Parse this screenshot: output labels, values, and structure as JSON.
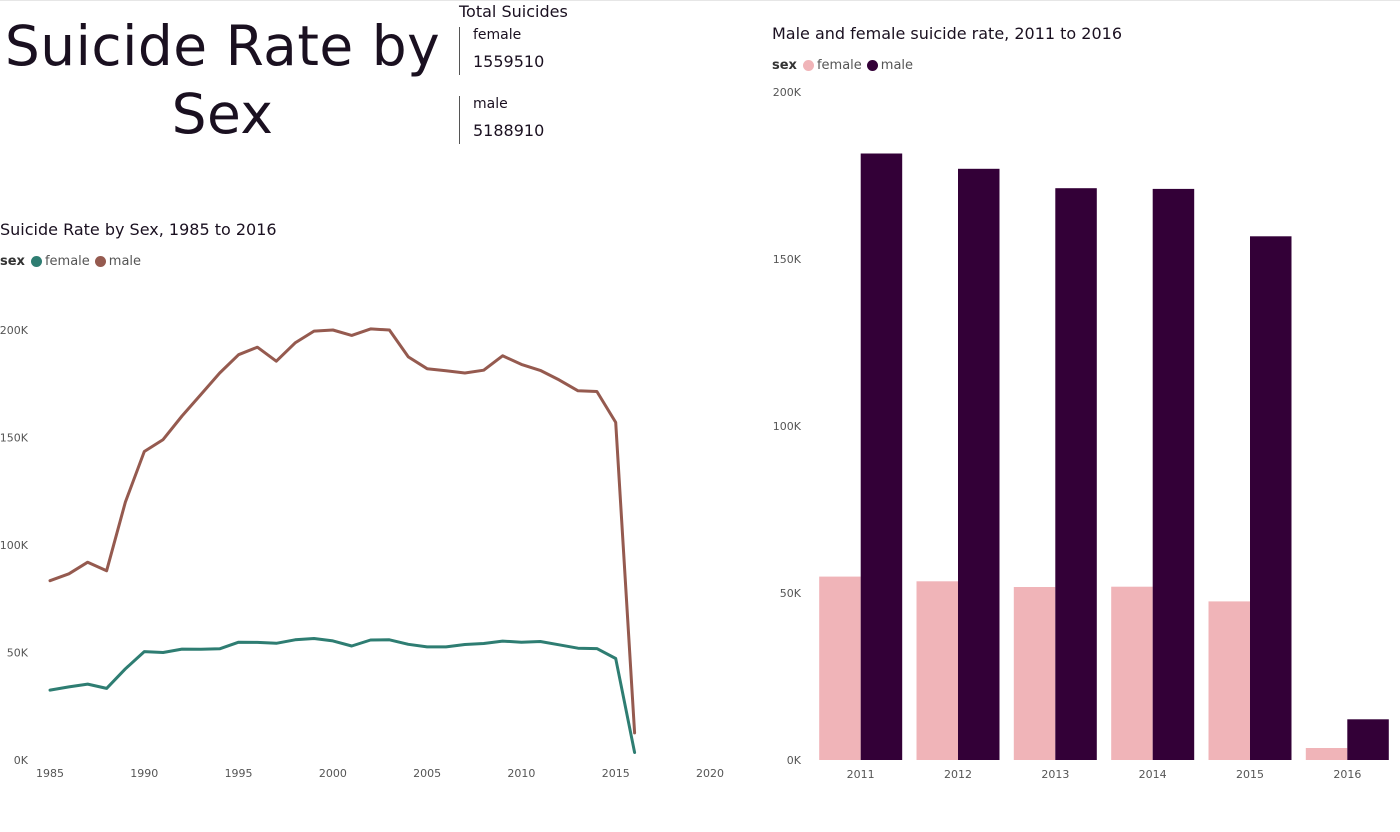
{
  "page_title": "Suicide Rate by Sex",
  "kpi": {
    "title": "Total Suicides",
    "items": [
      {
        "label": "female",
        "value": "1559510"
      },
      {
        "label": "male",
        "value": "5188910"
      }
    ]
  },
  "chart_data": [
    {
      "type": "line",
      "title": "Suicide Rate by Sex, 1985 to 2016",
      "legend_title": "sex",
      "legend_position": "top-left",
      "xlabel": "",
      "ylabel": "",
      "xlim": [
        1985,
        2020
      ],
      "ylim": [
        0,
        210000
      ],
      "x_ticks": [
        "1985",
        "1990",
        "1995",
        "2000",
        "2005",
        "2010",
        "2015",
        "2020"
      ],
      "y_ticks": [
        "0K",
        "50K",
        "100K",
        "150K",
        "200K"
      ],
      "x": [
        1985,
        1986,
        1987,
        1988,
        1989,
        1990,
        1991,
        1992,
        1993,
        1994,
        1995,
        1996,
        1997,
        1998,
        1999,
        2000,
        2001,
        2002,
        2003,
        2004,
        2005,
        2006,
        2007,
        2008,
        2009,
        2010,
        2011,
        2012,
        2013,
        2014,
        2015,
        2016
      ],
      "series": [
        {
          "name": "female",
          "color": "#2e7d72",
          "values": [
            32500,
            34000,
            35300,
            33300,
            42400,
            50400,
            50000,
            51600,
            51500,
            51700,
            54800,
            54700,
            54300,
            55900,
            56500,
            55400,
            53000,
            55800,
            55900,
            53800,
            52600,
            52600,
            53700,
            54200,
            55300,
            54800,
            55100,
            53600,
            52000,
            51800,
            47200,
            3500
          ]
        },
        {
          "name": "male",
          "color": "#955a4f",
          "values": [
            83400,
            86600,
            92000,
            88000,
            120000,
            143500,
            149000,
            160000,
            170000,
            180000,
            188500,
            192000,
            185500,
            194000,
            199500,
            200000,
            197500,
            200500,
            200000,
            187500,
            182000,
            181000,
            180000,
            181300,
            188000,
            184000,
            181200,
            176800,
            171700,
            171400,
            157000,
            12600
          ]
        }
      ]
    },
    {
      "type": "bar",
      "title": "Male and female suicide rate, 2011 to 2016",
      "legend_title": "sex",
      "legend_position": "top-left",
      "xlabel": "",
      "ylabel": "",
      "ylim": [
        0,
        200000
      ],
      "y_ticks": [
        "0K",
        "50K",
        "100K",
        "150K",
        "200K"
      ],
      "categories": [
        "2011",
        "2012",
        "2013",
        "2014",
        "2015",
        "2016"
      ],
      "series": [
        {
          "name": "female",
          "color": "#f0b4b8",
          "values": [
            54900,
            53500,
            51800,
            51900,
            47500,
            3600
          ]
        },
        {
          "name": "male",
          "color": "#330037",
          "values": [
            181600,
            177000,
            171200,
            171000,
            156800,
            12200
          ]
        }
      ]
    }
  ]
}
